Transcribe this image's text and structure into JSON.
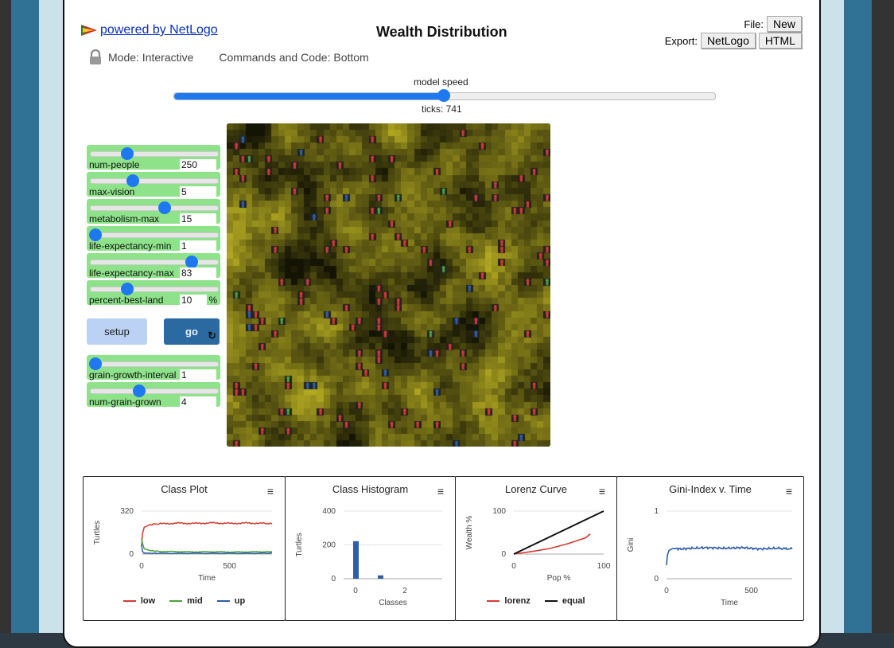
{
  "header": {
    "powered_by": "powered by NetLogo",
    "title": "Wealth Distribution",
    "file_label": "File:",
    "new_label": "New",
    "export_label": "Export:",
    "netlogo_label": "NetLogo",
    "html_label": "HTML",
    "mode": "Mode: Interactive",
    "commands": "Commands and Code: Bottom"
  },
  "speed": {
    "label": "model speed",
    "value": 0.5,
    "ticks_label": "ticks: 741"
  },
  "sliders": [
    {
      "label": "num-people",
      "value": "250",
      "pos": 0.27
    },
    {
      "label": "max-vision",
      "value": "5",
      "pos": 0.32
    },
    {
      "label": "metabolism-max",
      "value": "15",
      "pos": 0.59
    },
    {
      "label": "life-expectancy-min",
      "value": "1",
      "pos": 0.0
    },
    {
      "label": "life-expectancy-max",
      "value": "83",
      "pos": 0.82
    },
    {
      "label": "percent-best-land",
      "value": "10",
      "unit": "%",
      "pos": 0.27
    }
  ],
  "buttons": {
    "setup": "setup",
    "go": "go",
    "forever": "↻"
  },
  "sliders2": [
    {
      "label": "grain-growth-interval",
      "value": "1",
      "pos": 0.0
    },
    {
      "label": "num-grain-grown",
      "value": "4",
      "pos": 0.37
    }
  ],
  "plots": {
    "class_plot": {
      "title": "Class Plot",
      "ylabel": "Turtles",
      "xlabel": "Time",
      "yticks": [
        "320",
        "0"
      ],
      "xticks": [
        "0",
        "500"
      ],
      "legend": [
        "low",
        "mid",
        "up"
      ]
    },
    "class_hist": {
      "title": "Class Histogram",
      "ylabel": "Turtles",
      "xlabel": "Classes",
      "yticks": [
        "400",
        "200",
        "0"
      ],
      "xticks": [
        "0",
        "2"
      ]
    },
    "lorenz": {
      "title": "Lorenz Curve",
      "ylabel": "Wealth %",
      "xlabel": "Pop %",
      "yticks": [
        "100",
        "0"
      ],
      "xticks": [
        "0",
        "100"
      ],
      "legend": [
        "lorenz",
        "equal"
      ]
    },
    "gini": {
      "title": "Gini-Index v. Time",
      "ylabel": "Gini",
      "xlabel": "Time",
      "yticks": [
        "1",
        "0"
      ],
      "xticks": [
        "0",
        "500"
      ]
    }
  },
  "colors": {
    "low": "#d63a2f",
    "mid": "#4aa43c",
    "up": "#2f5fa8",
    "equal": "#111111"
  },
  "chart_data": [
    {
      "type": "line",
      "title": "Class Plot",
      "xlabel": "Time",
      "ylabel": "Turtles",
      "xlim": [
        0,
        741
      ],
      "ylim": [
        0,
        320
      ],
      "series": [
        {
          "name": "low",
          "x": [
            0,
            5,
            15,
            50,
            100,
            200,
            300,
            400,
            500,
            600,
            700,
            741
          ],
          "values": [
            60,
            150,
            200,
            220,
            225,
            230,
            228,
            232,
            228,
            231,
            228,
            225
          ]
        },
        {
          "name": "mid",
          "x": [
            0,
            5,
            15,
            50,
            100,
            200,
            300,
            400,
            500,
            600,
            700,
            741
          ],
          "values": [
            120,
            80,
            40,
            25,
            20,
            18,
            16,
            17,
            15,
            16,
            17,
            18
          ]
        },
        {
          "name": "up",
          "x": [
            0,
            5,
            15,
            50,
            100,
            200,
            300,
            400,
            500,
            600,
            700,
            741
          ],
          "values": [
            70,
            20,
            8,
            6,
            6,
            5,
            6,
            5,
            6,
            5,
            6,
            7
          ]
        }
      ]
    },
    {
      "type": "bar",
      "title": "Class Histogram",
      "xlabel": "Classes",
      "ylabel": "Turtles",
      "categories": [
        "0",
        "1",
        "2"
      ],
      "values": [
        222,
        20,
        0
      ],
      "ylim": [
        0,
        400
      ]
    },
    {
      "type": "line",
      "title": "Lorenz Curve",
      "xlabel": "Pop %",
      "ylabel": "Wealth %",
      "xlim": [
        0,
        100
      ],
      "ylim": [
        0,
        100
      ],
      "series": [
        {
          "name": "lorenz",
          "x": [
            0,
            20,
            40,
            60,
            80,
            85
          ],
          "values": [
            0,
            6,
            13,
            24,
            38,
            47
          ]
        },
        {
          "name": "equal",
          "x": [
            0,
            100
          ],
          "values": [
            0,
            100
          ]
        }
      ]
    },
    {
      "type": "line",
      "title": "Gini-Index v. Time",
      "xlabel": "Time",
      "ylabel": "Gini",
      "xlim": [
        0,
        741
      ],
      "ylim": [
        0,
        1
      ],
      "series": [
        {
          "x": [
            0,
            5,
            15,
            40,
            80,
            150,
            250,
            350,
            450,
            550,
            650,
            741
          ],
          "values": [
            0.2,
            0.35,
            0.42,
            0.45,
            0.44,
            0.45,
            0.46,
            0.45,
            0.46,
            0.44,
            0.45,
            0.44
          ]
        }
      ]
    }
  ]
}
